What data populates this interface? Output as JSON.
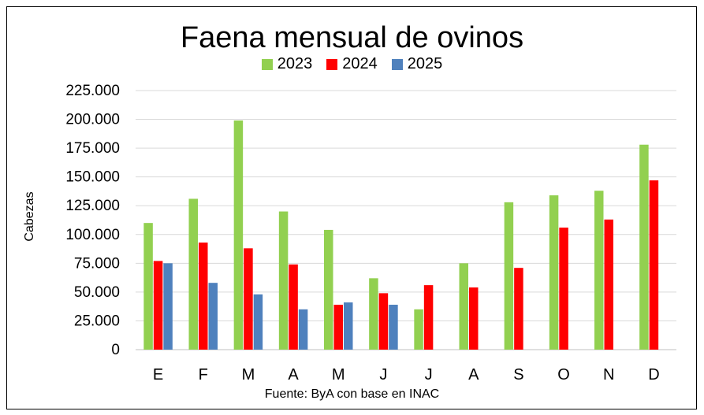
{
  "chart_data": {
    "type": "bar",
    "title": "Faena mensual de ovinos",
    "ylabel": "Cabezas",
    "xlabel": "",
    "source": "Fuente: ByA con base en INAC",
    "categories": [
      "E",
      "F",
      "M",
      "A",
      "M",
      "J",
      "J",
      "A",
      "S",
      "O",
      "N",
      "D"
    ],
    "ylim": [
      0,
      225000
    ],
    "yticks": [
      "0",
      "25.000",
      "50.000",
      "75.000",
      "100.000",
      "125.000",
      "150.000",
      "175.000",
      "200.000",
      "225.000"
    ],
    "grid": true,
    "legend": "top-center",
    "series": [
      {
        "name": "2023",
        "color": "#92d050",
        "values": [
          110000,
          131000,
          199000,
          120000,
          104000,
          62000,
          35000,
          75000,
          128000,
          134000,
          138000,
          178000
        ]
      },
      {
        "name": "2024",
        "color": "#ff0000",
        "values": [
          77000,
          93000,
          88000,
          74000,
          39000,
          49000,
          56000,
          54000,
          71000,
          106000,
          113000,
          147000
        ]
      },
      {
        "name": "2025",
        "color": "#4f81bd",
        "values": [
          75000,
          58000,
          48000,
          35000,
          41000,
          39000,
          null,
          null,
          null,
          null,
          null,
          null
        ]
      }
    ]
  }
}
